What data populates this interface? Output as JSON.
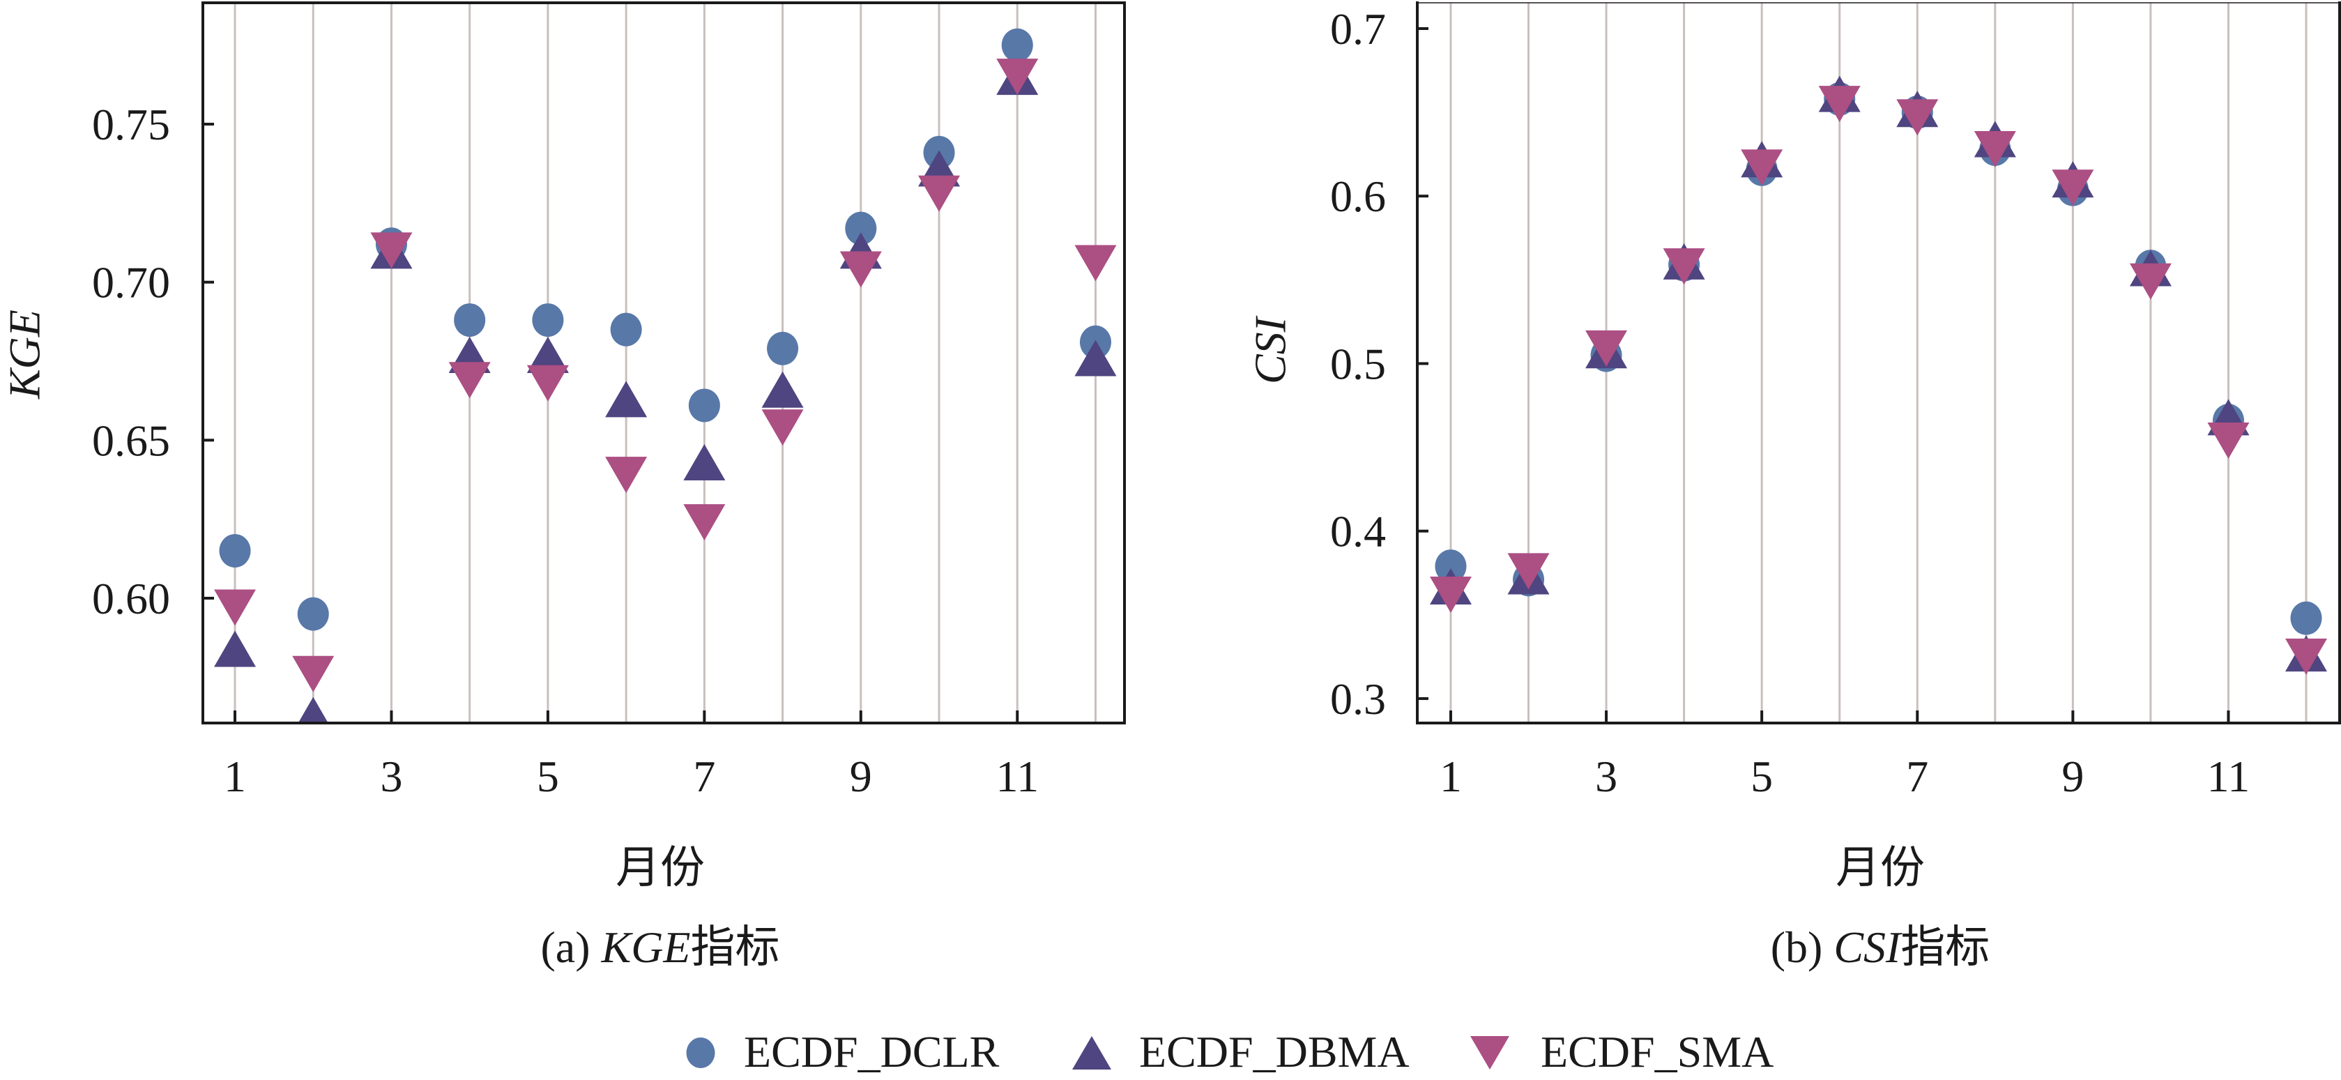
{
  "figure": {
    "legend": {
      "placement": "bottom-center",
      "entries": [
        {
          "name": "ECDF_DCLR",
          "marker": "circle",
          "color": "#5878A8"
        },
        {
          "name": "ECDF_DBMA",
          "marker": "triangle-up",
          "color": "#4F4580"
        },
        {
          "name": "ECDF_SMA",
          "marker": "triangle-down",
          "color": "#AC4F83"
        }
      ]
    },
    "grid_color": "#C9BFBD",
    "axis_color": "#1A1A1A"
  },
  "chart_data": [
    {
      "type": "scatter",
      "caption": {
        "prefix": "(a) ",
        "italic": "KGE",
        "suffix": "指标"
      },
      "xlabel": "月份",
      "ylabel": "KGE",
      "x": [
        1,
        2,
        3,
        4,
        5,
        6,
        7,
        8,
        9,
        10,
        11,
        12
      ],
      "xticks": [
        1,
        3,
        5,
        7,
        9,
        11
      ],
      "xtick_labels": [
        "1",
        "3",
        "5",
        "7",
        "9",
        "11"
      ],
      "yticks": [
        0.6,
        0.65,
        0.7,
        0.75
      ],
      "ytick_labels": [
        "0.60",
        "0.65",
        "0.70",
        "0.75"
      ],
      "xlim": [
        0.59,
        12.37
      ],
      "ylim": [
        0.5605,
        0.7884
      ],
      "grid": true,
      "legend": "bottom-center",
      "series": [
        {
          "name": "ECDF_DCLR",
          "marker": "circle",
          "color": "#5878A8",
          "values": [
            0.615,
            0.595,
            0.712,
            0.688,
            0.688,
            0.685,
            0.661,
            0.679,
            0.717,
            0.741,
            0.775,
            0.681
          ]
        },
        {
          "name": "ECDF_DBMA",
          "marker": "triangle-up",
          "color": "#4F4580",
          "values": [
            0.584,
            0.563,
            0.71,
            0.677,
            0.677,
            0.663,
            0.643,
            0.666,
            0.71,
            0.736,
            0.765,
            0.676
          ]
        },
        {
          "name": "ECDF_SMA",
          "marker": "triangle-down",
          "color": "#AC4F83",
          "values": [
            0.597,
            0.576,
            0.71,
            0.669,
            0.668,
            0.639,
            0.624,
            0.654,
            0.704,
            0.728,
            0.765,
            0.706
          ]
        }
      ]
    },
    {
      "type": "scatter",
      "caption": {
        "prefix": "(b) ",
        "italic": "CSI",
        "suffix": "指标"
      },
      "xlabel": "月份",
      "ylabel": "CSI",
      "x": [
        1,
        2,
        3,
        4,
        5,
        6,
        7,
        8,
        9,
        10,
        11,
        12
      ],
      "xticks": [
        1,
        3,
        5,
        7,
        9,
        11
      ],
      "xtick_labels": [
        "1",
        "3",
        "5",
        "7",
        "9",
        "11"
      ],
      "yticks": [
        0.3,
        0.4,
        0.5,
        0.6,
        0.7
      ],
      "ytick_labels": [
        "0.3",
        "0.4",
        "0.5",
        "0.6",
        "0.7"
      ],
      "xlim": [
        0.57,
        12.43
      ],
      "ylim": [
        0.2854,
        0.7154
      ],
      "grid": true,
      "legend": "bottom-center",
      "series": [
        {
          "name": "ECDF_DCLR",
          "marker": "circle",
          "color": "#5878A8",
          "values": [
            0.379,
            0.371,
            0.505,
            0.559,
            0.616,
            0.658,
            0.65,
            0.628,
            0.604,
            0.558,
            0.466,
            0.348
          ]
        },
        {
          "name": "ECDF_DBMA",
          "marker": "triangle-up",
          "color": "#4F4580",
          "values": [
            0.367,
            0.373,
            0.508,
            0.561,
            0.622,
            0.661,
            0.652,
            0.634,
            0.61,
            0.557,
            0.468,
            0.327
          ]
        },
        {
          "name": "ECDF_SMA",
          "marker": "triangle-down",
          "color": "#AC4F83",
          "values": [
            0.362,
            0.376,
            0.509,
            0.558,
            0.617,
            0.655,
            0.647,
            0.628,
            0.605,
            0.549,
            0.454,
            0.325
          ]
        }
      ]
    }
  ]
}
